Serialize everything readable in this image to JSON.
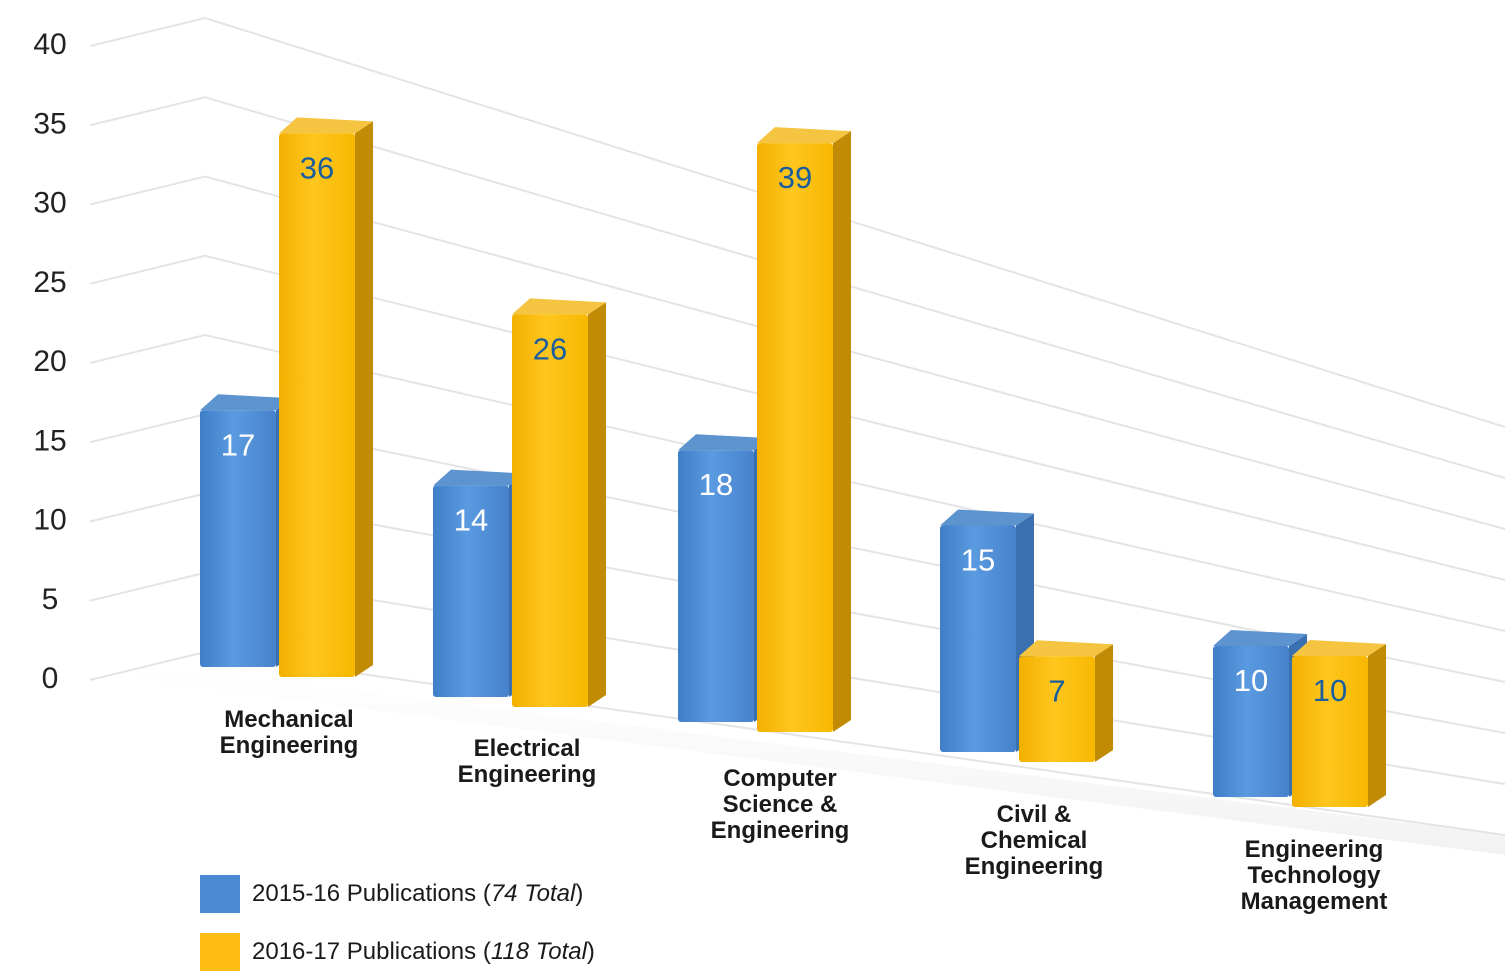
{
  "chart_data": {
    "type": "bar",
    "title": "",
    "xlabel": "",
    "ylabel": "",
    "ylim": [
      0,
      40
    ],
    "yticks": [
      "0",
      "5",
      "10",
      "15",
      "20",
      "25",
      "30",
      "35",
      "40"
    ],
    "grid": true,
    "legend_position": "bottom-left",
    "categories": [
      [
        "Mechanical",
        "Engineering"
      ],
      [
        "Electrical",
        "Engineering"
      ],
      [
        "Computer",
        "Science &",
        "Engineering"
      ],
      [
        "Civil &",
        "Chemical",
        "Engineering"
      ],
      [
        "Engineering",
        "Technology",
        "Management"
      ]
    ],
    "series": [
      {
        "name": "2015-16 Publications",
        "total_label": "74 Total",
        "color": "#4f8fd6",
        "label_color": "#ffffff",
        "values": [
          17,
          14,
          18,
          15,
          10
        ]
      },
      {
        "name": "2016-17 Publications",
        "total_label": "118 Total",
        "color": "#fdbd13",
        "label_color": "#1a5e9e",
        "values": [
          36,
          26,
          39,
          7,
          10
        ]
      }
    ]
  }
}
